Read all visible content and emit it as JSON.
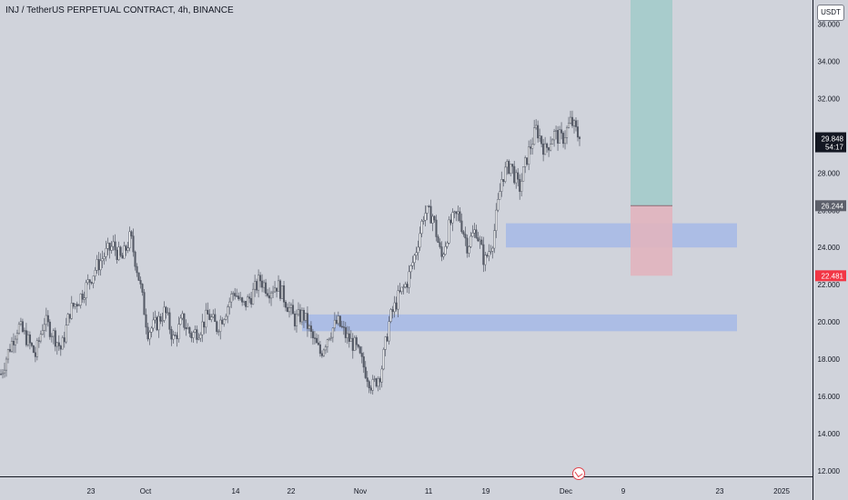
{
  "title": "INJ / TetherUS PERPETUAL CONTRACT, 4h, BINANCE",
  "currency_label": "USDT",
  "flag_icon": "flag-icon",
  "colors": {
    "background": "#d0d3db",
    "candle": "#555a66",
    "zone": "#a6b8e6",
    "target": "#a8cccc",
    "stop": "#e1b4be",
    "price_tag": "#131722",
    "entry_tag": "#5d606b",
    "stop_tag": "#f23645"
  },
  "chart_data": {
    "type": "line",
    "title": "INJ / TetherUS PERPETUAL CONTRACT, 4h, BINANCE",
    "xlabel": "",
    "ylabel": "",
    "ylim": [
      11.7,
      37.3
    ],
    "yticks": [
      "36.000",
      "34.000",
      "32.000",
      "30.000",
      "28.000",
      "26.000",
      "24.000",
      "22.000",
      "20.000",
      "18.000",
      "16.000",
      "14.000",
      "12.000"
    ],
    "xticks": [
      "23",
      "Oct",
      "14",
      "22",
      "Nov",
      "11",
      "19",
      "Dec",
      "9",
      "23",
      "2025"
    ],
    "series": [
      {
        "values": [
          17.2,
          18.6,
          19.8,
          19.1,
          18.2,
          20.1,
          19.4,
          18.5,
          20.6,
          21.2,
          22.0,
          22.9,
          23.6,
          24.1,
          23.3,
          24.6,
          22.3,
          19.5,
          19.9,
          20.6,
          19.0,
          20.1,
          19.3,
          19.6,
          20.4,
          19.7,
          20.6,
          21.7,
          20.8,
          21.4,
          22.3,
          21.7,
          22.0,
          21.1,
          20.1,
          20.4,
          19.2,
          18.3,
          19.4,
          20.0,
          19.2,
          18.7,
          17.6,
          16.5,
          17.3,
          20.1,
          21.3,
          22.1,
          23.7,
          25.9,
          25.7,
          23.4,
          25.3,
          25.8,
          24.1,
          25.0,
          23.2,
          24.5,
          27.8,
          28.5,
          27.1,
          29.0,
          30.4,
          29.2,
          30.1,
          29.8,
          30.8,
          29.848
        ]
      }
    ],
    "price_scale": {
      "last_price": "29.848",
      "countdown": "54:17",
      "entry_price": "26.244",
      "stop_price": "22.481"
    },
    "demand_zones": [
      {
        "from": 24.0,
        "to": 25.3
      },
      {
        "from": 19.5,
        "to": 20.4
      }
    ],
    "long_position": {
      "target": 37.3,
      "entry": 26.244,
      "stop": 22.481
    }
  }
}
